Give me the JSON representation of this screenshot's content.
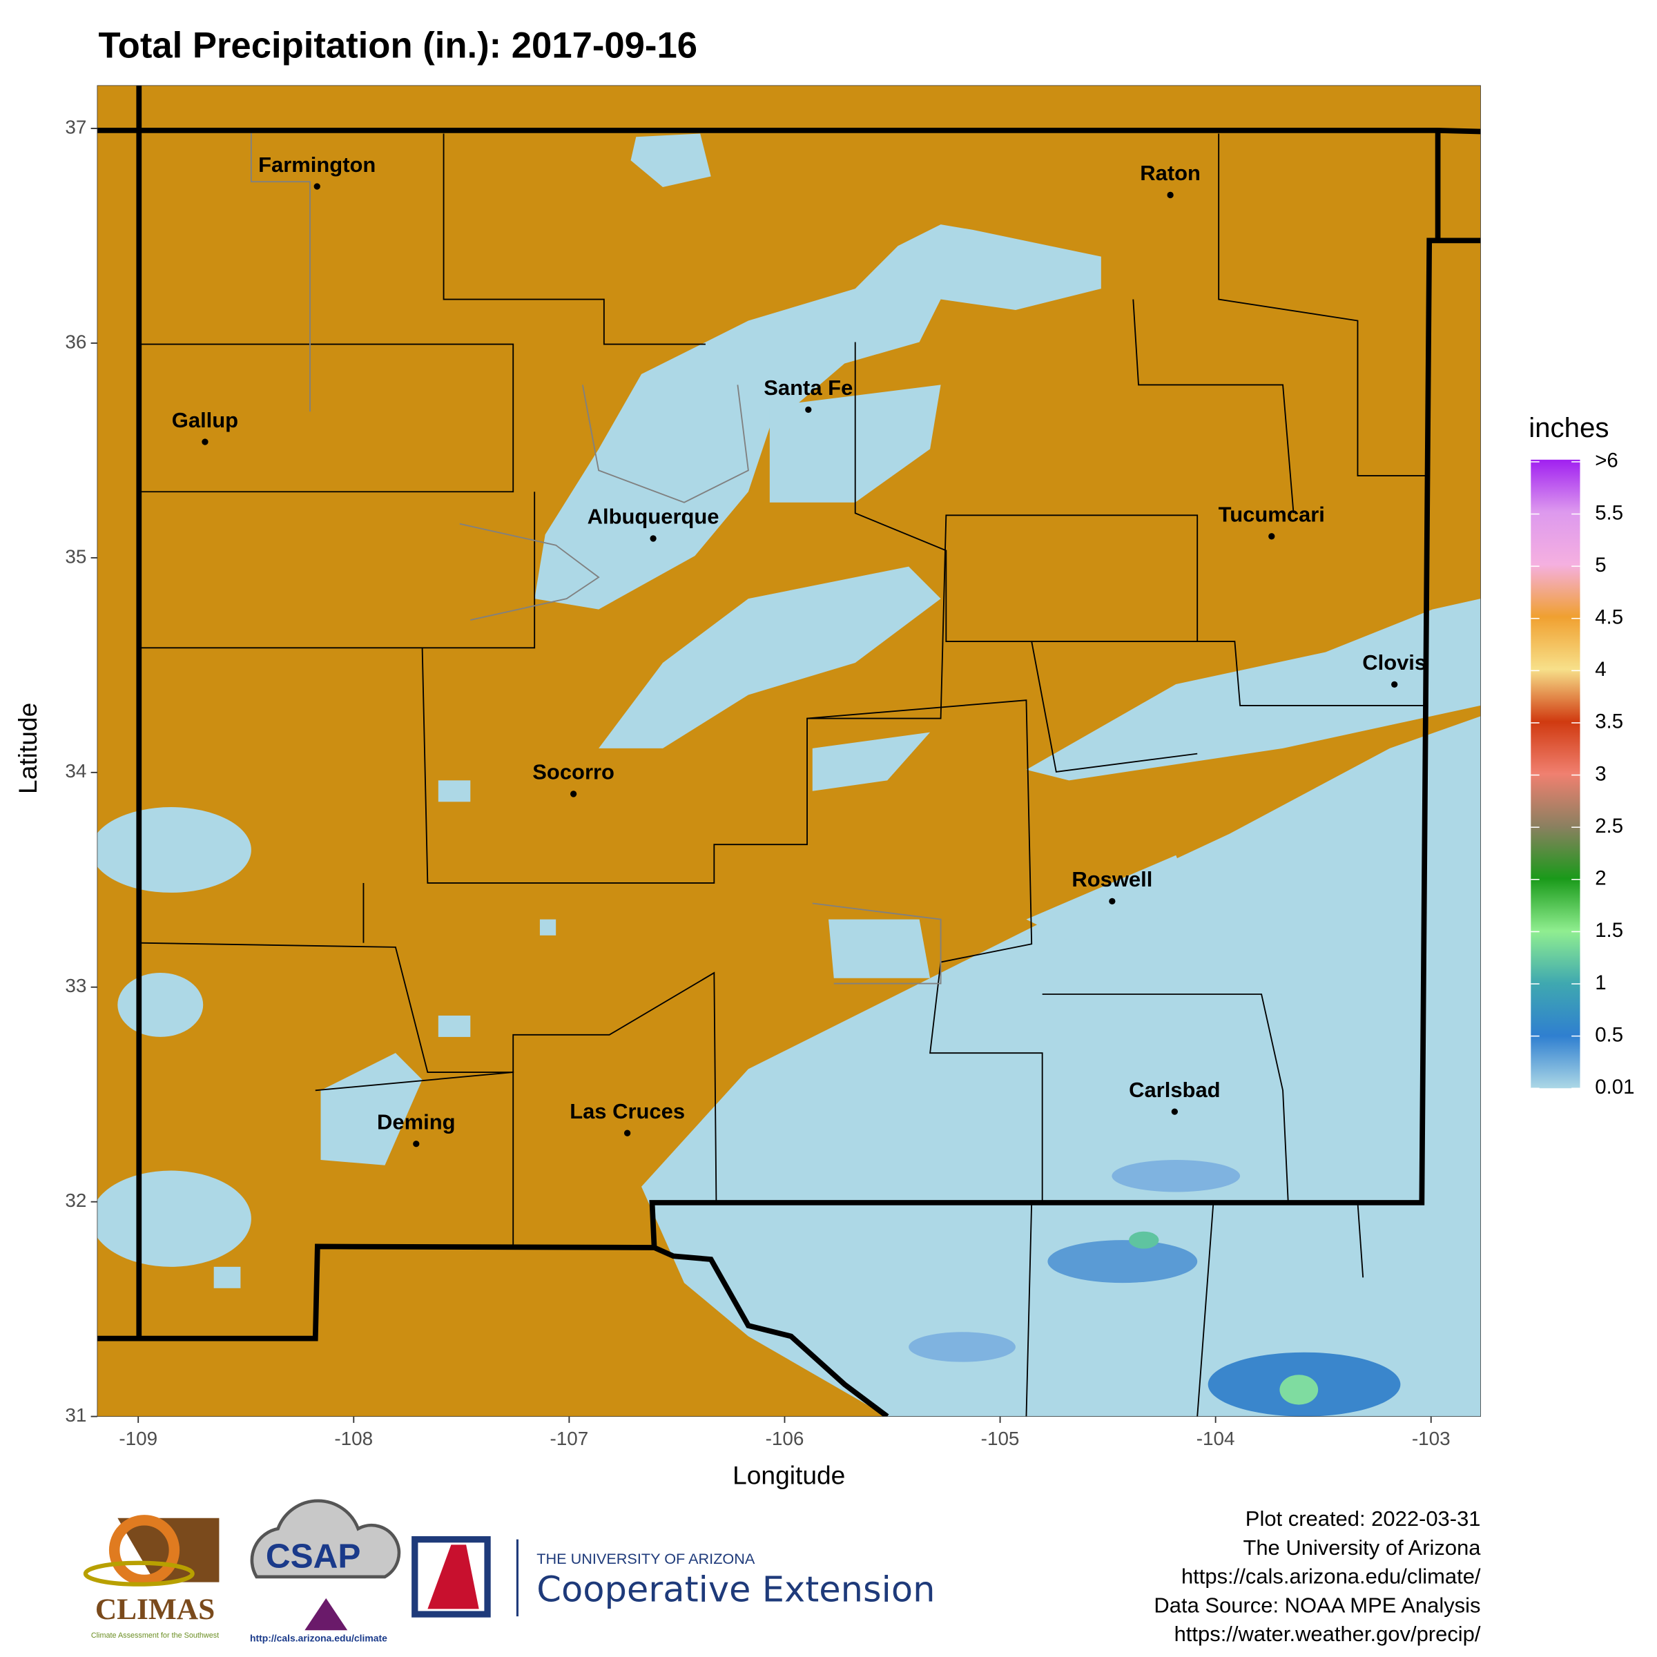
{
  "chart_data": {
    "type": "map",
    "title": "Total Precipitation (in.): 2017-09-16",
    "x_label": "Longitude",
    "y_label": "Latitude",
    "xlim": [
      -109.19,
      -102.77
    ],
    "ylim": [
      31,
      37.2
    ],
    "xticks": [
      -109,
      -108,
      -107,
      -106,
      -105,
      -104,
      -103
    ],
    "yticks": [
      31,
      32,
      33,
      34,
      35,
      36,
      37
    ],
    "base_color": "#cc8e12",
    "cities": [
      {
        "name": "Farmington",
        "lon": -108.17,
        "lat": 36.73
      },
      {
        "name": "Raton",
        "lon": -104.21,
        "lat": 36.69
      },
      {
        "name": "Gallup",
        "lon": -108.69,
        "lat": 35.54
      },
      {
        "name": "Santa Fe",
        "lon": -105.89,
        "lat": 35.69
      },
      {
        "name": "Albuquerque",
        "lon": -106.61,
        "lat": 35.09
      },
      {
        "name": "Tucumcari",
        "lon": -103.74,
        "lat": 35.1
      },
      {
        "name": "Clovis",
        "lon": -103.17,
        "lat": 34.41
      },
      {
        "name": "Socorro",
        "lon": -106.98,
        "lat": 33.9
      },
      {
        "name": "Roswell",
        "lon": -104.48,
        "lat": 33.4
      },
      {
        "name": "Carlsbad",
        "lon": -104.19,
        "lat": 32.42
      },
      {
        "name": "Deming",
        "lon": -107.71,
        "lat": 32.27
      },
      {
        "name": "Las Cruces",
        "lon": -106.73,
        "lat": 32.32
      }
    ],
    "legend": {
      "title": "inches",
      "labels": [
        "0.01",
        "0.5",
        "1",
        "1.5",
        "2",
        "2.5",
        "3",
        "3.5",
        "4",
        "4.5",
        "5",
        "5.5",
        ">6"
      ],
      "colors": [
        "#add8e6",
        "#2f7fd0",
        "#3fa8b0",
        "#90ee90",
        "#1a9a1a",
        "#8b8060",
        "#f08070",
        "#d03a10",
        "#f7e08a",
        "#f0a030",
        "#f5b0e0",
        "#dd99ee",
        "#a020f0"
      ]
    }
  },
  "footer": {
    "lines": [
      "Plot created: 2022-03-31",
      "The University of Arizona",
      "https://cals.arizona.edu/climate/",
      "Data Source: NOAA MPE Analysis",
      "https://water.weather.gov/precip/"
    ]
  },
  "logos": {
    "climas": "CLIMAS",
    "climas_sub": "Climate Assessment for the Southwest",
    "csap": "CSAP",
    "csap_url": "http://cals.arizona.edu/climate",
    "ua_top": "THE UNIVERSITY OF ARIZONA",
    "ua_main": "Cooperative Extension"
  }
}
